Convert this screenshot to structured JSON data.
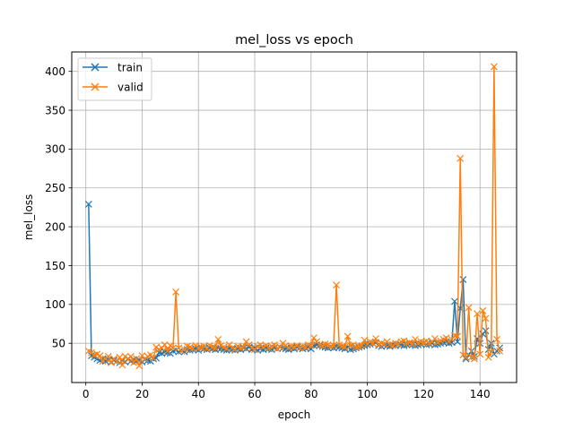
{
  "chart_data": {
    "type": "line",
    "title": "mel_loss vs epoch",
    "xlabel": "epoch",
    "ylabel": "mel_loss",
    "xlim": [
      -5,
      153
    ],
    "ylim": [
      -0.5,
      425
    ],
    "xticks": [
      0,
      20,
      40,
      60,
      80,
      100,
      120,
      140
    ],
    "yticks": [
      50,
      100,
      150,
      200,
      250,
      300,
      350,
      400
    ],
    "grid": true,
    "legend_position": "top-left",
    "marker": "x",
    "series": [
      {
        "name": "train",
        "color": "#1f77b4",
        "x": [
          1,
          2,
          3,
          4,
          5,
          6,
          7,
          8,
          9,
          10,
          11,
          12,
          13,
          14,
          15,
          16,
          17,
          18,
          19,
          20,
          21,
          22,
          23,
          24,
          25,
          26,
          27,
          28,
          29,
          30,
          31,
          32,
          33,
          34,
          35,
          36,
          37,
          38,
          39,
          40,
          41,
          42,
          43,
          44,
          45,
          46,
          47,
          48,
          49,
          50,
          51,
          52,
          53,
          54,
          55,
          56,
          57,
          58,
          59,
          60,
          61,
          62,
          63,
          64,
          65,
          66,
          67,
          68,
          69,
          70,
          71,
          72,
          73,
          74,
          75,
          76,
          77,
          78,
          79,
          80,
          81,
          82,
          83,
          84,
          85,
          86,
          87,
          88,
          89,
          90,
          91,
          92,
          93,
          94,
          95,
          96,
          97,
          98,
          99,
          100,
          101,
          102,
          103,
          104,
          105,
          106,
          107,
          108,
          109,
          110,
          111,
          112,
          113,
          114,
          115,
          116,
          117,
          118,
          119,
          120,
          121,
          122,
          123,
          124,
          125,
          126,
          127,
          128,
          129,
          130,
          131,
          132,
          133,
          134,
          135,
          136,
          137,
          138,
          139,
          140,
          141,
          142,
          143,
          144,
          145,
          146,
          147
        ],
        "values": [
          229,
          34,
          32,
          30,
          28,
          30,
          27,
          29,
          26,
          28,
          27,
          25,
          28,
          26,
          30,
          27,
          29,
          27,
          28,
          26,
          29,
          28,
          27,
          30,
          31,
          38,
          37,
          39,
          38,
          37,
          40,
          41,
          39,
          40,
          39,
          42,
          41,
          42,
          43,
          41,
          44,
          43,
          42,
          44,
          43,
          42,
          44,
          43,
          42,
          41,
          43,
          42,
          41,
          43,
          42,
          44,
          43,
          45,
          42,
          44,
          41,
          43,
          42,
          44,
          43,
          42,
          44,
          43,
          45,
          44,
          43,
          42,
          44,
          43,
          45,
          44,
          43,
          44,
          45,
          43,
          47,
          48,
          47,
          46,
          45,
          44,
          45,
          44,
          46,
          45,
          44,
          43,
          45,
          42,
          43,
          44,
          45,
          46,
          47,
          48,
          49,
          50,
          51,
          47,
          46,
          48,
          47,
          46,
          48,
          47,
          49,
          48,
          47,
          48,
          49,
          48,
          47,
          48,
          49,
          50,
          48,
          49,
          50,
          48,
          49,
          50,
          51,
          52,
          50,
          51,
          104,
          52,
          95,
          132,
          30,
          35,
          40,
          33,
          56,
          50,
          62,
          66,
          42,
          50,
          36,
          40,
          44
        ]
      },
      {
        "name": "valid",
        "color": "#ff7f0e",
        "x": [
          1,
          2,
          3,
          4,
          5,
          6,
          7,
          8,
          9,
          10,
          11,
          12,
          13,
          14,
          15,
          16,
          17,
          18,
          19,
          20,
          21,
          22,
          23,
          24,
          25,
          26,
          27,
          28,
          29,
          30,
          31,
          32,
          33,
          34,
          35,
          36,
          37,
          38,
          39,
          40,
          41,
          42,
          43,
          44,
          45,
          46,
          47,
          48,
          49,
          50,
          51,
          52,
          53,
          54,
          55,
          56,
          57,
          58,
          59,
          60,
          61,
          62,
          63,
          64,
          65,
          66,
          67,
          68,
          69,
          70,
          71,
          72,
          73,
          74,
          75,
          76,
          77,
          78,
          79,
          80,
          81,
          82,
          83,
          84,
          85,
          86,
          87,
          88,
          89,
          90,
          91,
          92,
          93,
          94,
          95,
          96,
          97,
          98,
          99,
          100,
          101,
          102,
          103,
          104,
          105,
          106,
          107,
          108,
          109,
          110,
          111,
          112,
          113,
          114,
          115,
          116,
          117,
          118,
          119,
          120,
          121,
          122,
          123,
          124,
          125,
          126,
          127,
          128,
          129,
          130,
          131,
          132,
          133,
          134,
          135,
          136,
          137,
          138,
          139,
          140,
          141,
          142,
          143,
          144,
          145,
          146,
          147
        ],
        "values": [
          40,
          38,
          35,
          36,
          34,
          27,
          30,
          33,
          25,
          30,
          27,
          32,
          22,
          33,
          29,
          33,
          25,
          30,
          21,
          34,
          30,
          33,
          35,
          31,
          45,
          42,
          44,
          48,
          40,
          47,
          44,
          116,
          44,
          40,
          42,
          46,
          45,
          43,
          47,
          44,
          45,
          46,
          43,
          47,
          45,
          44,
          55,
          47,
          45,
          43,
          48,
          44,
          42,
          46,
          44,
          45,
          52,
          48,
          44,
          42,
          46,
          48,
          45,
          47,
          44,
          46,
          48,
          43,
          45,
          50,
          47,
          44,
          46,
          45,
          47,
          44,
          46,
          45,
          48,
          47,
          57,
          52,
          48,
          47,
          49,
          48,
          46,
          47,
          125,
          48,
          46,
          45,
          59,
          47,
          48,
          45,
          46,
          47,
          54,
          49,
          52,
          50,
          56,
          48,
          50,
          49,
          52,
          48,
          47,
          50,
          49,
          52,
          53,
          50,
          51,
          49,
          55,
          50,
          52,
          51,
          53,
          50,
          52,
          56,
          51,
          53,
          55,
          57,
          52,
          55,
          60,
          59,
          288,
          35,
          32,
          96,
          32,
          30,
          88,
          36,
          92,
          82,
          32,
          39,
          406,
          55,
          40
        ]
      }
    ]
  }
}
